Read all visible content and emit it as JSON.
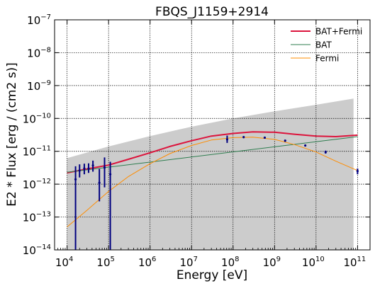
{
  "chart_data": {
    "type": "line",
    "title": "FBQS_J1159+2914",
    "xlabel": "Energy [eV]",
    "ylabel": "E2 * Flux [erg / (cm2 s)]",
    "x_scale": "log",
    "y_scale": "log",
    "xlim": [
      5000,
      200000000000
    ],
    "ylim": [
      1e-14,
      1e-07
    ],
    "grid": true,
    "legend_position": "top-right",
    "x_ticks": [
      {
        "value": 10000,
        "base": "10",
        "exp": "4"
      },
      {
        "value": 100000,
        "base": "10",
        "exp": "5"
      },
      {
        "value": 1000000,
        "base": "10",
        "exp": "6"
      },
      {
        "value": 10000000,
        "base": "10",
        "exp": "7"
      },
      {
        "value": 100000000,
        "base": "10",
        "exp": "8"
      },
      {
        "value": 1000000000,
        "base": "10",
        "exp": "9"
      },
      {
        "value": 10000000000,
        "base": "10",
        "exp": "10"
      },
      {
        "value": 100000000000,
        "base": "10",
        "exp": "11"
      }
    ],
    "y_ticks": [
      {
        "value": 1e-14,
        "base": "10",
        "exp": "−14"
      },
      {
        "value": 1e-13,
        "base": "10",
        "exp": "−13"
      },
      {
        "value": 1e-12,
        "base": "10",
        "exp": "−12"
      },
      {
        "value": 1e-11,
        "base": "10",
        "exp": "−11"
      },
      {
        "value": 1e-10,
        "base": "10",
        "exp": "−10"
      },
      {
        "value": 1e-09,
        "base": "10",
        "exp": "−9"
      },
      {
        "value": 1e-08,
        "base": "10",
        "exp": "−8"
      },
      {
        "value": 1e-07,
        "base": "10",
        "exp": "−7"
      }
    ],
    "uncertainty_band": {
      "color": "#cccccc",
      "x": [
        10000,
        100000,
        1000000,
        10000000,
        100000000,
        1000000000,
        10000000000,
        80000000000
      ],
      "upper": [
        6.2e-12,
        1.4e-11,
        2.9e-11,
        5.6e-11,
        1e-10,
        1.65e-10,
        2.6e-10,
        4e-10
      ],
      "lower": [
        1e-14,
        1e-14,
        1e-14,
        1e-14,
        1e-14,
        1e-14,
        1e-14,
        1e-14
      ]
    },
    "series": [
      {
        "name": "BAT+Fermi",
        "color": "#dc143c",
        "width": 2,
        "x": [
          10000,
          30000,
          100000,
          300000,
          1000000,
          3000000,
          10000000,
          30000000,
          100000000,
          300000000,
          1000000000,
          3000000000,
          10000000000,
          30000000000,
          100000000000
        ],
        "y": [
          2.2e-12,
          2.9e-12,
          3.8e-12,
          5.7e-12,
          9e-12,
          1.4e-11,
          2.1e-11,
          2.9e-11,
          3.5e-11,
          3.9e-11,
          3.8e-11,
          3.3e-11,
          2.9e-11,
          2.8e-11,
          3.1e-11
        ]
      },
      {
        "name": "BAT",
        "color": "#2e7d4f",
        "width": 1,
        "x": [
          10000,
          100000000000
        ],
        "y": [
          2.3e-12,
          2.8e-11
        ]
      },
      {
        "name": "Fermi",
        "color": "#ff8c00",
        "width": 1,
        "x": [
          10000,
          30000,
          100000,
          300000,
          1000000,
          3000000,
          10000000,
          30000000,
          100000000,
          300000000,
          1000000000,
          3000000000,
          10000000000,
          30000000000,
          100000000000
        ],
        "y": [
          5e-14,
          1.6e-13,
          6e-13,
          1.7e-12,
          4.2e-12,
          8.5e-12,
          1.5e-11,
          2.2e-11,
          2.6e-11,
          2.7e-11,
          2.3e-11,
          1.6e-11,
          9.5e-12,
          5e-12,
          2.6e-12
        ]
      }
    ],
    "data_points": {
      "color": "#000080",
      "points": [
        {
          "x": 16000,
          "y": 1.4e-12,
          "ylo": 1e-14,
          "yhi": 3.5e-12
        },
        {
          "x": 20000,
          "y": 2.6e-12,
          "ylo": 1.6e-12,
          "yhi": 4e-12
        },
        {
          "x": 26000,
          "y": 3e-12,
          "ylo": 2e-12,
          "yhi": 4.2e-12
        },
        {
          "x": 33000,
          "y": 3e-12,
          "ylo": 2.2e-12,
          "yhi": 4.3e-12
        },
        {
          "x": 42000,
          "y": 3.7e-12,
          "ylo": 2.4e-12,
          "yhi": 5.2e-12
        },
        {
          "x": 60000,
          "y": 1.1e-12,
          "ylo": 3e-13,
          "yhi": 2.9e-12
        },
        {
          "x": 80000,
          "y": 3.2e-12,
          "ylo": 8e-13,
          "yhi": 6.5e-12
        },
        {
          "x": 110000,
          "y": 2e-12,
          "ylo": 1e-14,
          "yhi": 4.8e-12
        },
        {
          "x": 72000000,
          "y": 2.3e-11,
          "ylo": 1.8e-11,
          "yhi": 3e-11
        },
        {
          "x": 180000000,
          "y": 2.7e-11,
          "ylo": 2.5e-11,
          "yhi": 2.9e-11
        },
        {
          "x": 580000000,
          "y": 2.6e-11,
          "ylo": 2.45e-11,
          "yhi": 2.75e-11
        },
        {
          "x": 1800000000,
          "y": 2.1e-11,
          "ylo": 1.95e-11,
          "yhi": 2.25e-11
        },
        {
          "x": 5500000000,
          "y": 1.5e-11,
          "ylo": 1.4e-11,
          "yhi": 1.6e-11
        },
        {
          "x": 17000000000,
          "y": 9.5e-12,
          "ylo": 8.5e-12,
          "yhi": 1.05e-11
        },
        {
          "x": 100000000000,
          "y": 2.5e-12,
          "ylo": 2e-12,
          "yhi": 3e-12
        }
      ]
    }
  }
}
